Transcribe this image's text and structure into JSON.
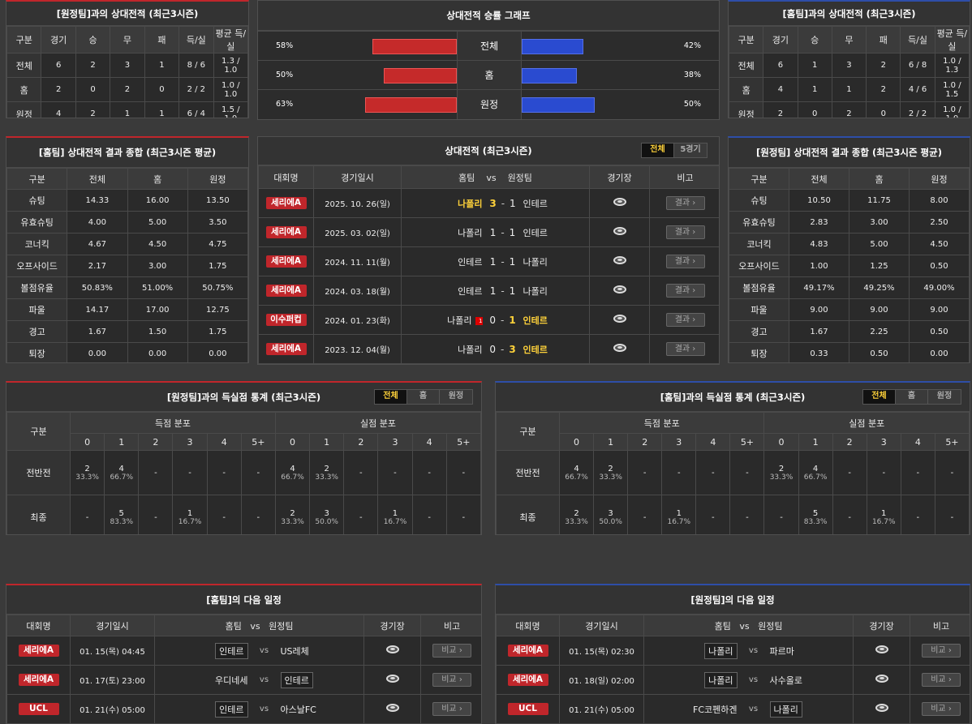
{
  "h2h_away": {
    "title": "[원정팀]과의 상대전적 (최근3시즌)",
    "headers": [
      "구분",
      "경기",
      "승",
      "무",
      "패",
      "득/실",
      "평균 득/실"
    ],
    "rows": [
      [
        "전체",
        "6",
        "2",
        "3",
        "1",
        "8 / 6",
        "1.3 / 1.0"
      ],
      [
        "홈",
        "2",
        "0",
        "2",
        "0",
        "2 / 2",
        "1.0 / 1.0"
      ],
      [
        "원정",
        "4",
        "2",
        "1",
        "1",
        "6 / 4",
        "1.5 / 1.0"
      ]
    ]
  },
  "win_graph": {
    "title": "상대전적 승률 그래프",
    "rows": [
      {
        "label": "전체",
        "left": "58%",
        "right": "42%",
        "left_v": 58,
        "right_v": 42
      },
      {
        "label": "홈",
        "left": "50%",
        "right": "38%",
        "left_v": 50,
        "right_v": 38
      },
      {
        "label": "원정",
        "left": "63%",
        "right": "50%",
        "left_v": 63,
        "right_v": 50
      }
    ]
  },
  "h2h_home": {
    "title": "[홈팀]과의 상대전적 (최근3시즌)",
    "headers": [
      "구분",
      "경기",
      "승",
      "무",
      "패",
      "득/실",
      "평균 득/실"
    ],
    "rows": [
      [
        "전체",
        "6",
        "1",
        "3",
        "2",
        "6 / 8",
        "1.0 / 1.3"
      ],
      [
        "홈",
        "4",
        "1",
        "1",
        "2",
        "4 / 6",
        "1.0 / 1.5"
      ],
      [
        "원정",
        "2",
        "0",
        "2",
        "0",
        "2 / 2",
        "1.0 / 1.0"
      ]
    ]
  },
  "summary_home": {
    "title": "[홈팀] 상대전적 결과 종합 (최근3시즌 평균)",
    "headers": [
      "구분",
      "전체",
      "홈",
      "원정"
    ],
    "rows": [
      [
        "슈팅",
        "14.33",
        "16.00",
        "13.50"
      ],
      [
        "유효슈팅",
        "4.00",
        "5.00",
        "3.50"
      ],
      [
        "코너킥",
        "4.67",
        "4.50",
        "4.75"
      ],
      [
        "오프사이드",
        "2.17",
        "3.00",
        "1.75"
      ],
      [
        "볼점유율",
        "50.83%",
        "51.00%",
        "50.75%"
      ],
      [
        "파울",
        "14.17",
        "17.00",
        "12.75"
      ],
      [
        "경고",
        "1.67",
        "1.50",
        "1.75"
      ],
      [
        "퇴장",
        "0.00",
        "0.00",
        "0.00"
      ]
    ]
  },
  "matches": {
    "title": "상대전적 (최근3시즌)",
    "tabs": [
      "전체",
      "5경기"
    ],
    "headers": {
      "league": "대회명",
      "date": "경기일시",
      "home": "홈팀",
      "vs": "vs",
      "away": "원정팀",
      "stadium": "경기장",
      "note": "비고"
    },
    "result_label": "결과",
    "rows": [
      {
        "league": "세리에A",
        "date": "2025. 10. 26(일)",
        "home": "나폴리",
        "hs": "3",
        "as": "1",
        "away": "인테르",
        "win": "home"
      },
      {
        "league": "세리에A",
        "date": "2025. 03. 02(일)",
        "home": "나폴리",
        "hs": "1",
        "as": "1",
        "away": "인테르",
        "win": ""
      },
      {
        "league": "세리에A",
        "date": "2024. 11. 11(월)",
        "home": "인테르",
        "hs": "1",
        "as": "1",
        "away": "나폴리",
        "win": ""
      },
      {
        "league": "세리에A",
        "date": "2024. 03. 18(월)",
        "home": "인테르",
        "hs": "1",
        "as": "1",
        "away": "나폴리",
        "win": ""
      },
      {
        "league": "이수퍼컵",
        "date": "2024. 01. 23(화)",
        "home": "나폴리",
        "hs": "0",
        "as": "1",
        "away": "인테르",
        "win": "away",
        "card": "1"
      },
      {
        "league": "세리에A",
        "date": "2023. 12. 04(월)",
        "home": "나폴리",
        "hs": "0",
        "as": "3",
        "away": "인테르",
        "win": "away"
      }
    ]
  },
  "summary_away": {
    "title": "[원정팀] 상대전적 결과 종합 (최근3시즌 평균)",
    "headers": [
      "구분",
      "전체",
      "홈",
      "원정"
    ],
    "rows": [
      [
        "슈팅",
        "10.50",
        "11.75",
        "8.00"
      ],
      [
        "유효슈팅",
        "2.83",
        "3.00",
        "2.50"
      ],
      [
        "코너킥",
        "4.83",
        "5.00",
        "4.50"
      ],
      [
        "오프사이드",
        "1.00",
        "1.25",
        "0.50"
      ],
      [
        "볼점유율",
        "49.17%",
        "49.25%",
        "49.00%"
      ],
      [
        "파울",
        "9.00",
        "9.00",
        "9.00"
      ],
      [
        "경고",
        "1.67",
        "2.25",
        "0.50"
      ],
      [
        "퇴장",
        "0.33",
        "0.50",
        "0.00"
      ]
    ]
  },
  "goals_away": {
    "title": "[원정팀]과의 득실점 통계 (최근3시즌)",
    "tabs": [
      "전체",
      "홈",
      "원정"
    ],
    "col_label": "구분",
    "scored": "득점 분포",
    "conceded": "실점 분포",
    "buckets": [
      "0",
      "1",
      "2",
      "3",
      "4",
      "5+"
    ],
    "rows": [
      {
        "label": "전반전",
        "s": [
          [
            "2",
            "33.3%"
          ],
          [
            "4",
            "66.7%"
          ],
          [
            "-",
            ""
          ],
          [
            "-",
            ""
          ],
          [
            "-",
            ""
          ],
          [
            "-",
            ""
          ]
        ],
        "c": [
          [
            "4",
            "66.7%"
          ],
          [
            "2",
            "33.3%"
          ],
          [
            "-",
            ""
          ],
          [
            "-",
            ""
          ],
          [
            "-",
            ""
          ],
          [
            "-",
            ""
          ]
        ]
      },
      {
        "label": "최종",
        "s": [
          [
            "-",
            ""
          ],
          [
            "5",
            "83.3%"
          ],
          [
            "-",
            ""
          ],
          [
            "1",
            "16.7%"
          ],
          [
            "-",
            ""
          ],
          [
            "-",
            ""
          ]
        ],
        "c": [
          [
            "2",
            "33.3%"
          ],
          [
            "3",
            "50.0%"
          ],
          [
            "-",
            ""
          ],
          [
            "1",
            "16.7%"
          ],
          [
            "-",
            ""
          ],
          [
            "-",
            ""
          ]
        ]
      }
    ]
  },
  "goals_home": {
    "title": "[홈팀]과의 득실점 통계 (최근3시즌)",
    "tabs": [
      "전체",
      "홈",
      "원정"
    ],
    "col_label": "구분",
    "scored": "득점 분포",
    "conceded": "실점 분포",
    "buckets": [
      "0",
      "1",
      "2",
      "3",
      "4",
      "5+"
    ],
    "rows": [
      {
        "label": "전반전",
        "s": [
          [
            "4",
            "66.7%"
          ],
          [
            "2",
            "33.3%"
          ],
          [
            "-",
            ""
          ],
          [
            "-",
            ""
          ],
          [
            "-",
            ""
          ],
          [
            "-",
            ""
          ]
        ],
        "c": [
          [
            "2",
            "33.3%"
          ],
          [
            "4",
            "66.7%"
          ],
          [
            "-",
            ""
          ],
          [
            "-",
            ""
          ],
          [
            "-",
            ""
          ],
          [
            "-",
            ""
          ]
        ]
      },
      {
        "label": "최종",
        "s": [
          [
            "2",
            "33.3%"
          ],
          [
            "3",
            "50.0%"
          ],
          [
            "-",
            ""
          ],
          [
            "1",
            "16.7%"
          ],
          [
            "-",
            ""
          ],
          [
            "-",
            ""
          ]
        ],
        "c": [
          [
            "-",
            ""
          ],
          [
            "5",
            "83.3%"
          ],
          [
            "-",
            ""
          ],
          [
            "1",
            "16.7%"
          ],
          [
            "-",
            ""
          ],
          [
            "-",
            ""
          ]
        ]
      }
    ]
  },
  "next_home": {
    "title": "[홈팀]의 다음 일정",
    "headers": {
      "league": "대회명",
      "date": "경기일시",
      "home": "홈팀",
      "vs": "vs",
      "away": "원정팀",
      "stadium": "경기장",
      "note": "비고"
    },
    "btn": "비교",
    "rows": [
      {
        "league": "세리에A",
        "date": "01. 15(목) 04:45",
        "home": "인테르",
        "away": "US레체",
        "hl": "home"
      },
      {
        "league": "세리에A",
        "date": "01. 17(토) 23:00",
        "home": "우디네세",
        "away": "인테르",
        "hl": "away"
      },
      {
        "league": "UCL",
        "date": "01. 21(수) 05:00",
        "home": "인테르",
        "away": "아스날FC",
        "hl": "home"
      }
    ]
  },
  "next_away": {
    "title": "[원정팀]의 다음 일정",
    "headers": {
      "league": "대회명",
      "date": "경기일시",
      "home": "홈팀",
      "vs": "vs",
      "away": "원정팀",
      "stadium": "경기장",
      "note": "비고"
    },
    "btn": "비교",
    "rows": [
      {
        "league": "세리에A",
        "date": "01. 15(목) 02:30",
        "home": "나폴리",
        "away": "파르마",
        "hl": "home"
      },
      {
        "league": "세리에A",
        "date": "01. 18(일) 02:00",
        "home": "나폴리",
        "away": "사수올로",
        "hl": "home"
      },
      {
        "league": "UCL",
        "date": "01. 21(수) 05:00",
        "home": "FC코펜하겐",
        "away": "나폴리",
        "hl": "away"
      }
    ]
  }
}
